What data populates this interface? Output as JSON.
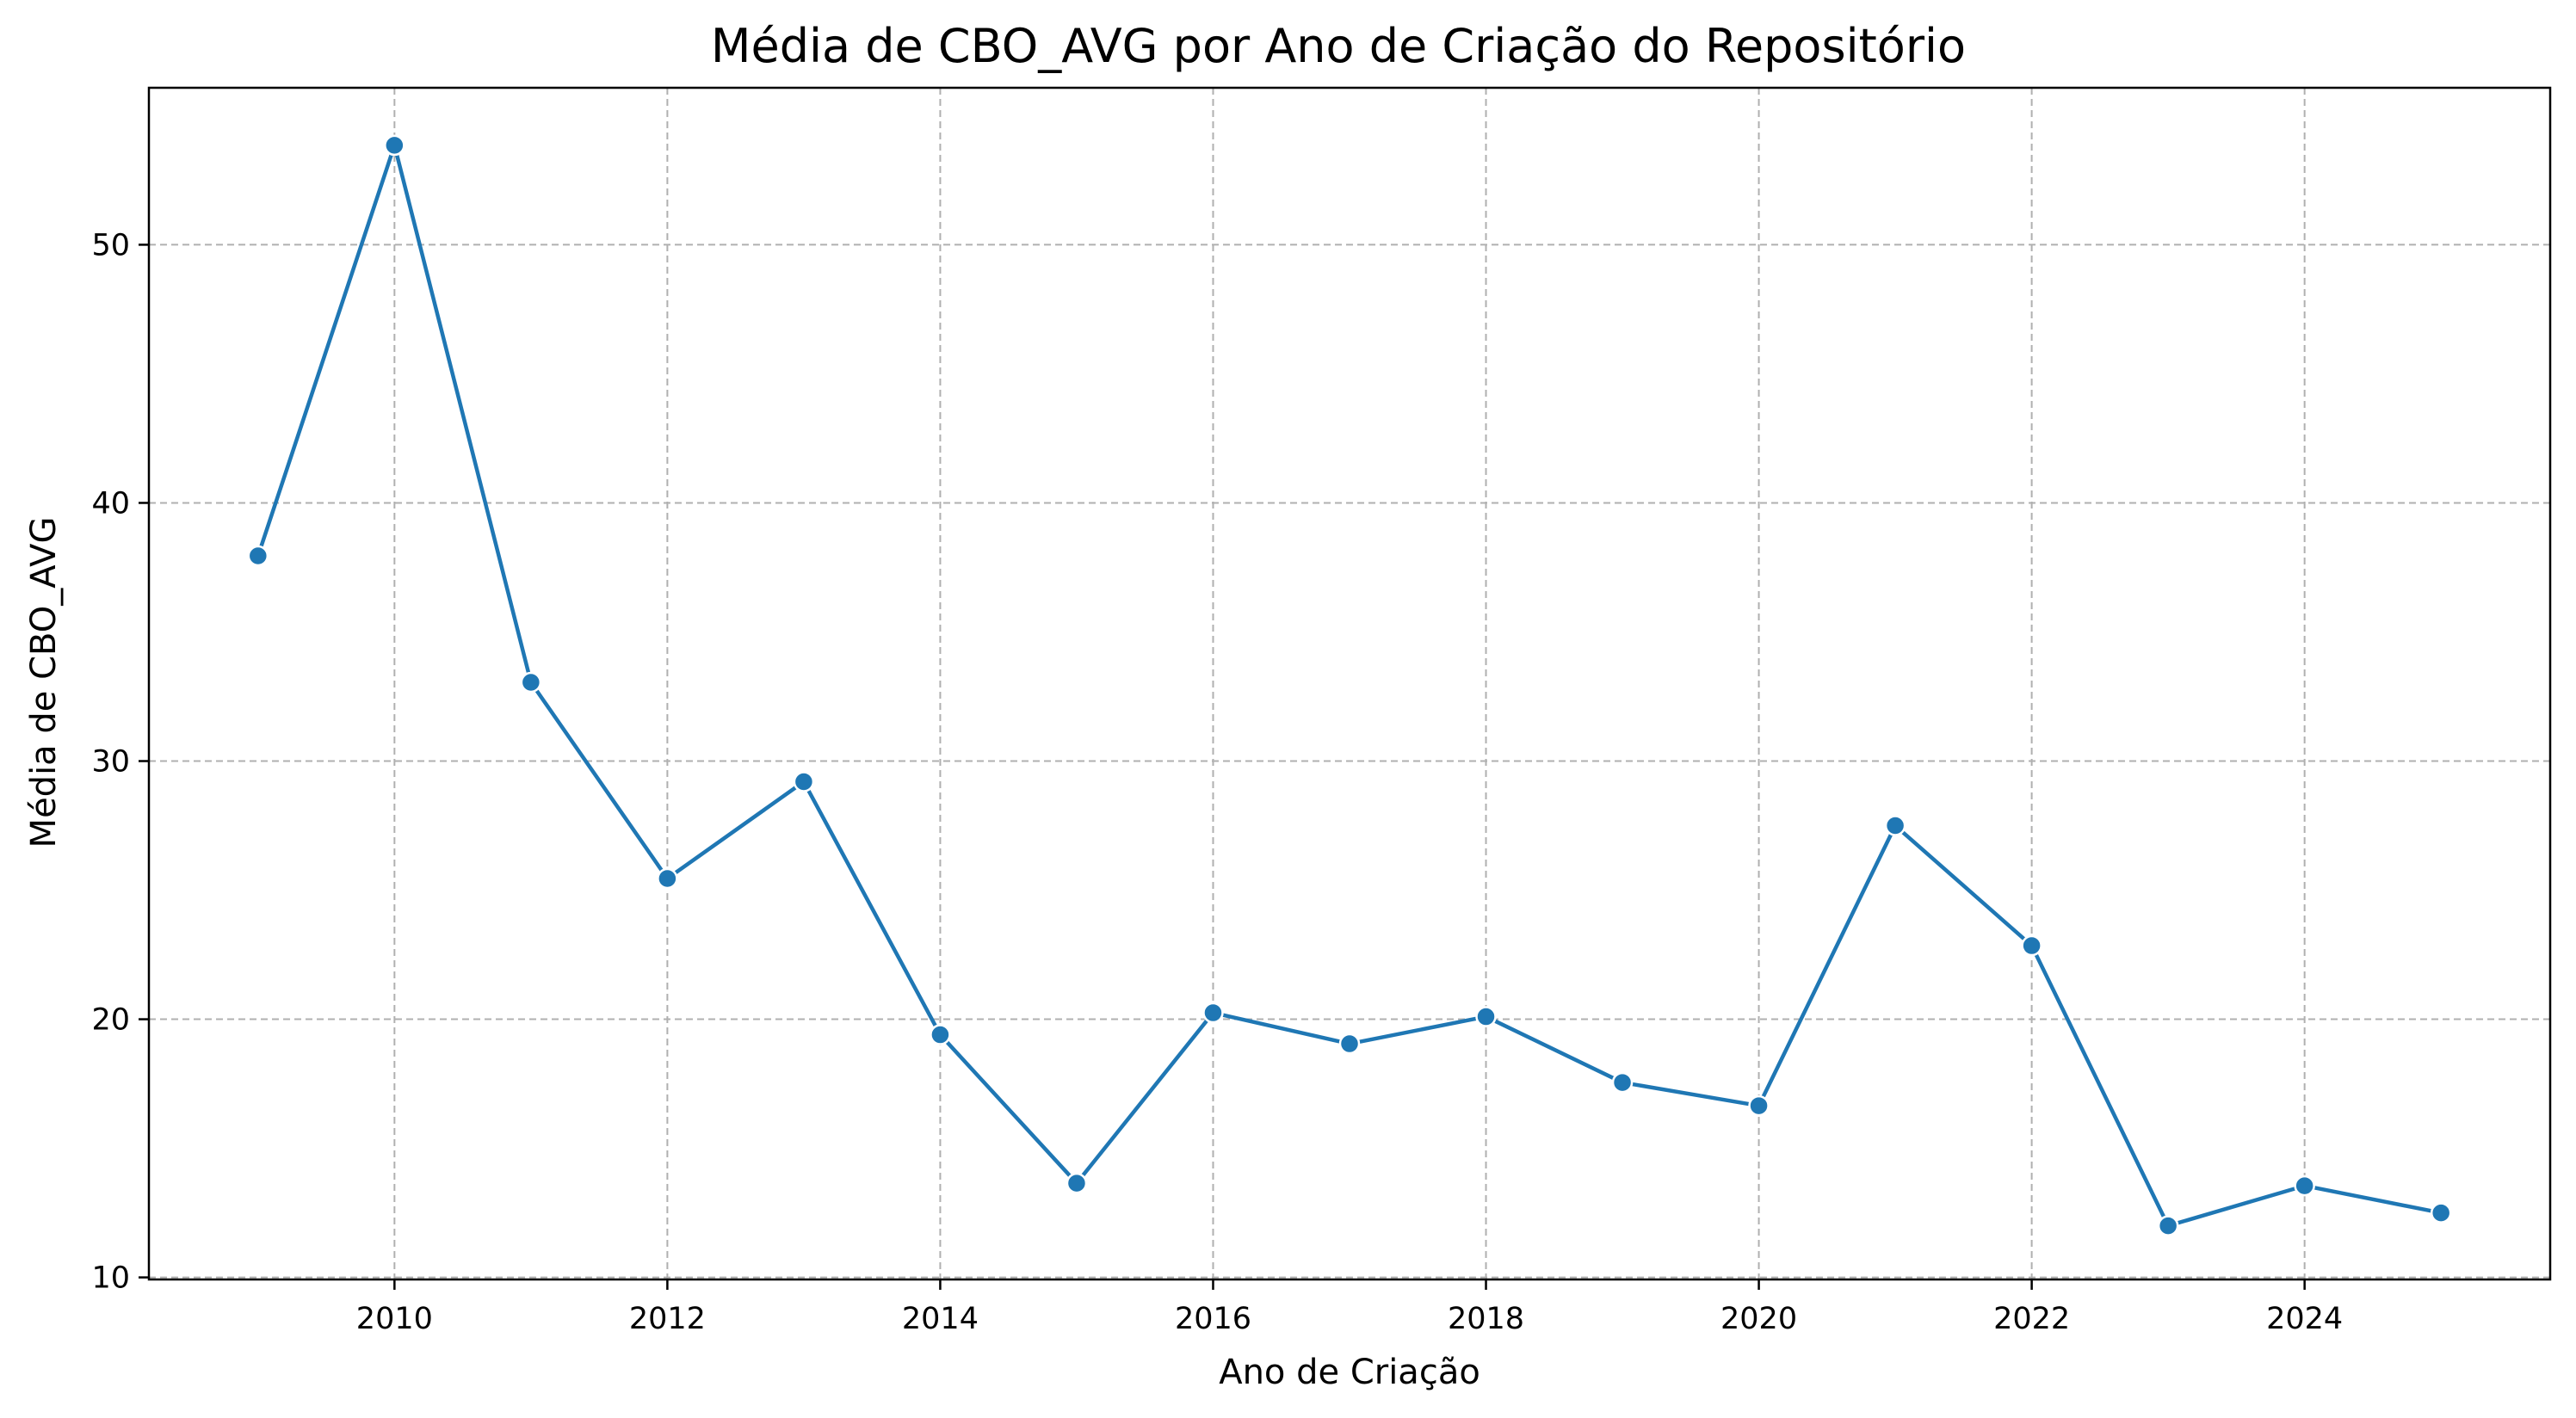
{
  "chart_data": {
    "type": "line",
    "title": "Média de CBO_AVG por Ano de Criação do Repositório",
    "xlabel": "Ano de Criação",
    "ylabel": "Média de CBO_AVG",
    "x": [
      2009,
      2010,
      2011,
      2012,
      2013,
      2014,
      2015,
      2016,
      2017,
      2018,
      2019,
      2020,
      2021,
      2022,
      2023,
      2024,
      2025
    ],
    "series": [
      {
        "values": [
          37.95,
          53.85,
          33.05,
          25.45,
          29.2,
          19.4,
          13.65,
          20.25,
          19.05,
          20.1,
          17.55,
          16.65,
          27.5,
          22.85,
          12.0,
          13.55,
          12.5
        ],
        "color": "#1f77b4",
        "marker": "circle"
      }
    ],
    "xlim": [
      2008.2,
      2025.8
    ],
    "ylim": [
      9.92,
      56.08
    ],
    "xticks": [
      2010,
      2012,
      2014,
      2016,
      2018,
      2020,
      2022,
      2024
    ],
    "yticks": [
      10,
      20,
      30,
      40,
      50
    ],
    "grid": true,
    "grid_color": "#b0b0b0",
    "grid_style": "dashed"
  }
}
